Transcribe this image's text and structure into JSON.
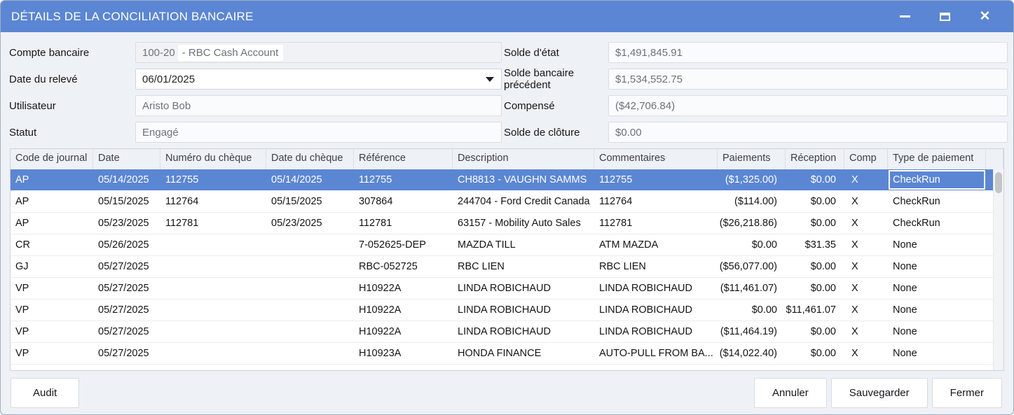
{
  "window": {
    "title": "DÉTAILS DE LA CONCILIATION BANCAIRE",
    "close_glyph": "✕"
  },
  "colors": {
    "accent_blue": "#5b86d3",
    "selection_blue": "#5b86d3",
    "body_background": "#eef1f5"
  },
  "form": {
    "account": {
      "label": "Compte bancaire",
      "code": "100-20",
      "name": "- RBC Cash Account"
    },
    "statement_date": {
      "label": "Date du relevé",
      "value": "06/01/2025"
    },
    "user": {
      "label": "Utilisateur",
      "value": "Aristo Bob"
    },
    "status": {
      "label": "Statut",
      "value": "Engagé"
    },
    "statement_balance": {
      "label": "Solde d'état",
      "value": "$1,491,845.91"
    },
    "previous_bank_balance": {
      "label": "Solde bancaire précédent",
      "value": "$1,534,552.75"
    },
    "cleared": {
      "label": "Compensé",
      "value": "($42,706.84)"
    },
    "closing_balance": {
      "label": "Solde de clôture",
      "value": "$0.00"
    }
  },
  "table": {
    "columns": [
      {
        "key": "code",
        "label": "Code de journal"
      },
      {
        "key": "date",
        "label": "Date"
      },
      {
        "key": "cheque_no",
        "label": "Numéro du chèque"
      },
      {
        "key": "cheque_date",
        "label": "Date du chèque"
      },
      {
        "key": "reference",
        "label": "Référence"
      },
      {
        "key": "description",
        "label": "Description"
      },
      {
        "key": "comments",
        "label": "Commentaires"
      },
      {
        "key": "payments",
        "label": "Paiements"
      },
      {
        "key": "reception",
        "label": "Réception"
      },
      {
        "key": "comp",
        "label": "Comp"
      },
      {
        "key": "type",
        "label": "Type de paiement"
      }
    ],
    "rows": [
      {
        "code": "AP",
        "date": "05/14/2025",
        "cheque_no": "112755",
        "cheque_date": "05/14/2025",
        "reference": "112755",
        "description": "CH8813 - VAUGHN SAMMS",
        "comments": "112755",
        "payments": "($1,325.00)",
        "reception": "$0.00",
        "comp": "X",
        "type": "CheckRun",
        "selected": true,
        "type_focused": true
      },
      {
        "code": "AP",
        "date": "05/15/2025",
        "cheque_no": "112764",
        "cheque_date": "05/15/2025",
        "reference": "307864",
        "description": "244704 - Ford Credit Canada",
        "comments": "112764",
        "payments": "($114.00)",
        "reception": "$0.00",
        "comp": "X",
        "type": "CheckRun"
      },
      {
        "code": "AP",
        "date": "05/23/2025",
        "cheque_no": "112781",
        "cheque_date": "05/23/2025",
        "reference": "112781",
        "description": "63157 - Mobility Auto Sales",
        "comments": "112781",
        "payments": "($26,218.86)",
        "reception": "$0.00",
        "comp": "X",
        "type": "CheckRun"
      },
      {
        "code": "CR",
        "date": "05/26/2025",
        "cheque_no": "",
        "cheque_date": "",
        "reference": "7-052625-DEP",
        "description": "MAZDA TILL",
        "comments": "ATM MAZDA",
        "payments": "$0.00",
        "reception": "$31.35",
        "comp": "X",
        "type": "None"
      },
      {
        "code": "GJ",
        "date": "05/27/2025",
        "cheque_no": "",
        "cheque_date": "",
        "reference": "RBC-052725",
        "description": "RBC LIEN",
        "comments": "RBC LIEN",
        "payments": "($56,077.00)",
        "reception": "$0.00",
        "comp": "X",
        "type": "None"
      },
      {
        "code": "VP",
        "date": "05/27/2025",
        "cheque_no": "",
        "cheque_date": "",
        "reference": "H10922A",
        "description": "LINDA ROBICHAUD",
        "comments": "LINDA ROBICHAUD",
        "payments": "($11,461.07)",
        "reception": "$0.00",
        "comp": "X",
        "type": "None"
      },
      {
        "code": "VP",
        "date": "05/27/2025",
        "cheque_no": "",
        "cheque_date": "",
        "reference": "H10922A",
        "description": "LINDA ROBICHAUD",
        "comments": "LINDA ROBICHAUD",
        "payments": "$0.00",
        "reception": "$11,461.07",
        "comp": "X",
        "type": "None"
      },
      {
        "code": "VP",
        "date": "05/27/2025",
        "cheque_no": "",
        "cheque_date": "",
        "reference": "H10922A",
        "description": "LINDA ROBICHAUD",
        "comments": "LINDA ROBICHAUD",
        "payments": "($11,464.19)",
        "reception": "$0.00",
        "comp": "X",
        "type": "None"
      },
      {
        "code": "VP",
        "date": "05/27/2025",
        "cheque_no": "",
        "cheque_date": "",
        "reference": "H10923A",
        "description": "HONDA FINANCE",
        "comments": "AUTO-PULL FROM BA...",
        "payments": "($14,022.40)",
        "reception": "$0.00",
        "comp": "X",
        "type": "None"
      }
    ]
  },
  "footer": {
    "audit": "Audit",
    "cancel": "Annuler",
    "save": "Sauvegarder",
    "close": "Fermer"
  }
}
